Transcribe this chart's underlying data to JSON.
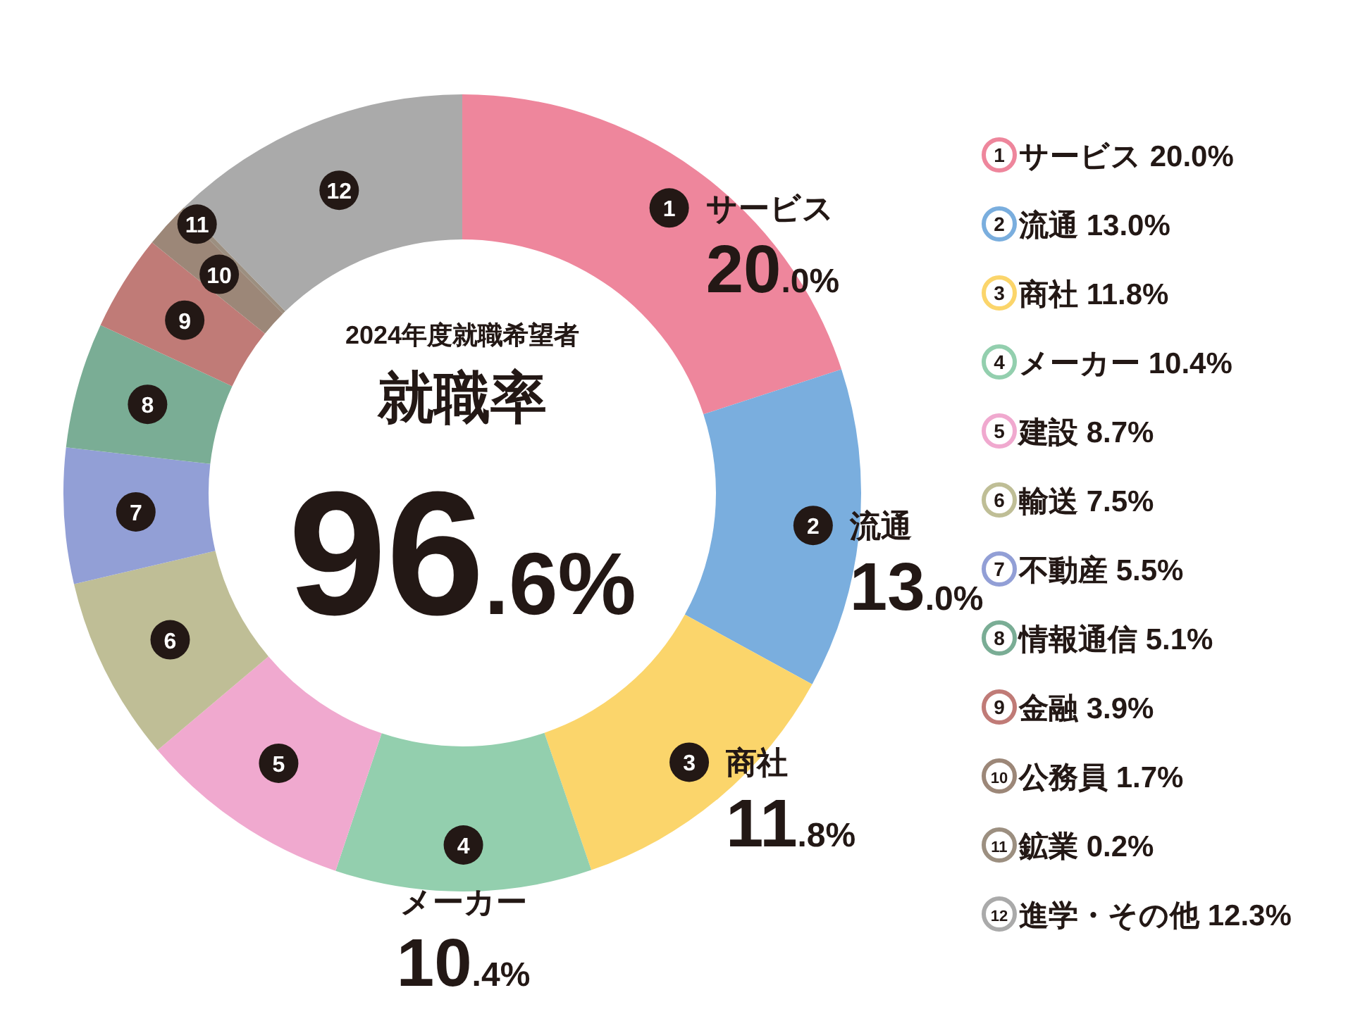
{
  "chart_data": {
    "type": "donut",
    "title": "就職率",
    "subtitle": "2024年度就職希望者",
    "annotations": [
      "96.6%",
      {
        "text": "1",
        "x": "サービス"
      },
      {
        "text": "2",
        "x": "流通"
      },
      {
        "text": "3",
        "x": "商社"
      },
      {
        "text": "4",
        "x": "メーカー"
      },
      {
        "text": "5",
        "x": "建設"
      },
      {
        "text": "6",
        "x": "輸送"
      },
      {
        "text": "7",
        "x": "不動産"
      },
      {
        "text": "8",
        "x": "情報通信"
      },
      {
        "text": "9",
        "x": "金融"
      },
      {
        "text": "10",
        "x": "公務員"
      },
      {
        "text": "11",
        "x": "鉱業"
      },
      {
        "text": "12",
        "x": "進学・その他"
      }
    ],
    "categories": [
      "サービス",
      "流通",
      "商社",
      "メーカー",
      "建設",
      "輸送",
      "不動産",
      "情報通信",
      "金融",
      "公務員",
      "鉱業",
      "進学・その他"
    ],
    "values": [
      20.0,
      13.0,
      11.8,
      10.4,
      8.7,
      7.5,
      5.5,
      5.1,
      3.9,
      1.7,
      0.2,
      12.3
    ],
    "value_labels": [
      "20.0%",
      "13.0%",
      "11.8%",
      "10.4%",
      "8.7%",
      "7.5%",
      "5.5%",
      "5.1%",
      "3.9%",
      "1.7%",
      "0.2%",
      "12.3%"
    ],
    "colors": [
      "#ee869c",
      "#7aaede",
      "#fbd56b",
      "#93cfae",
      "#f0a9cf",
      "#bfbe96",
      "#929fd6",
      "#7aad95",
      "#c07b77",
      "#9c8778",
      "#9c8f80",
      "#aaaaaa"
    ],
    "legend": "right"
  }
}
